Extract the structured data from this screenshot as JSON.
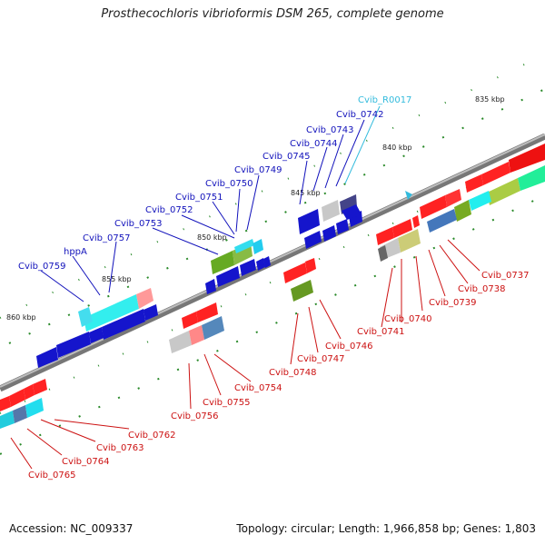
{
  "title": "Prosthecochloris vibrioformis DSM 265, complete genome",
  "accession": "Accession: NC_009337",
  "topology": "Topology: circular; Length: 1,966,858 bp; Genes: 1,803",
  "colors": {
    "forward_label": "#1111bb",
    "reverse_label": "#cc1111",
    "rna_label": "#33bbdd",
    "backbone": "#888888",
    "tick": "#228822"
  },
  "scale_labels": [
    "835 kbp",
    "840 kbp",
    "845 kbp",
    "850 kbp",
    "855 kbp",
    "860 kbp"
  ],
  "gene_labels_top": [
    "Cvib_R0017",
    "Cvib_0742",
    "Cvib_0743",
    "Cvib_0744",
    "Cvib_0745",
    "Cvib_0749",
    "Cvib_0750",
    "Cvib_0751",
    "Cvib_0752",
    "Cvib_0753",
    "Cvib_0757",
    "hppA",
    "Cvib_0759"
  ],
  "gene_labels_bottom": [
    "Cvib_0737",
    "Cvib_0738",
    "Cvib_0739",
    "Cvib_0740",
    "Cvib_0741",
    "Cvib_0746",
    "Cvib_0747",
    "Cvib_0748",
    "Cvib_0754",
    "Cvib_0755",
    "Cvib_0756",
    "Cvib_0762",
    "Cvib_0763",
    "Cvib_0764",
    "Cvib_0765"
  ]
}
